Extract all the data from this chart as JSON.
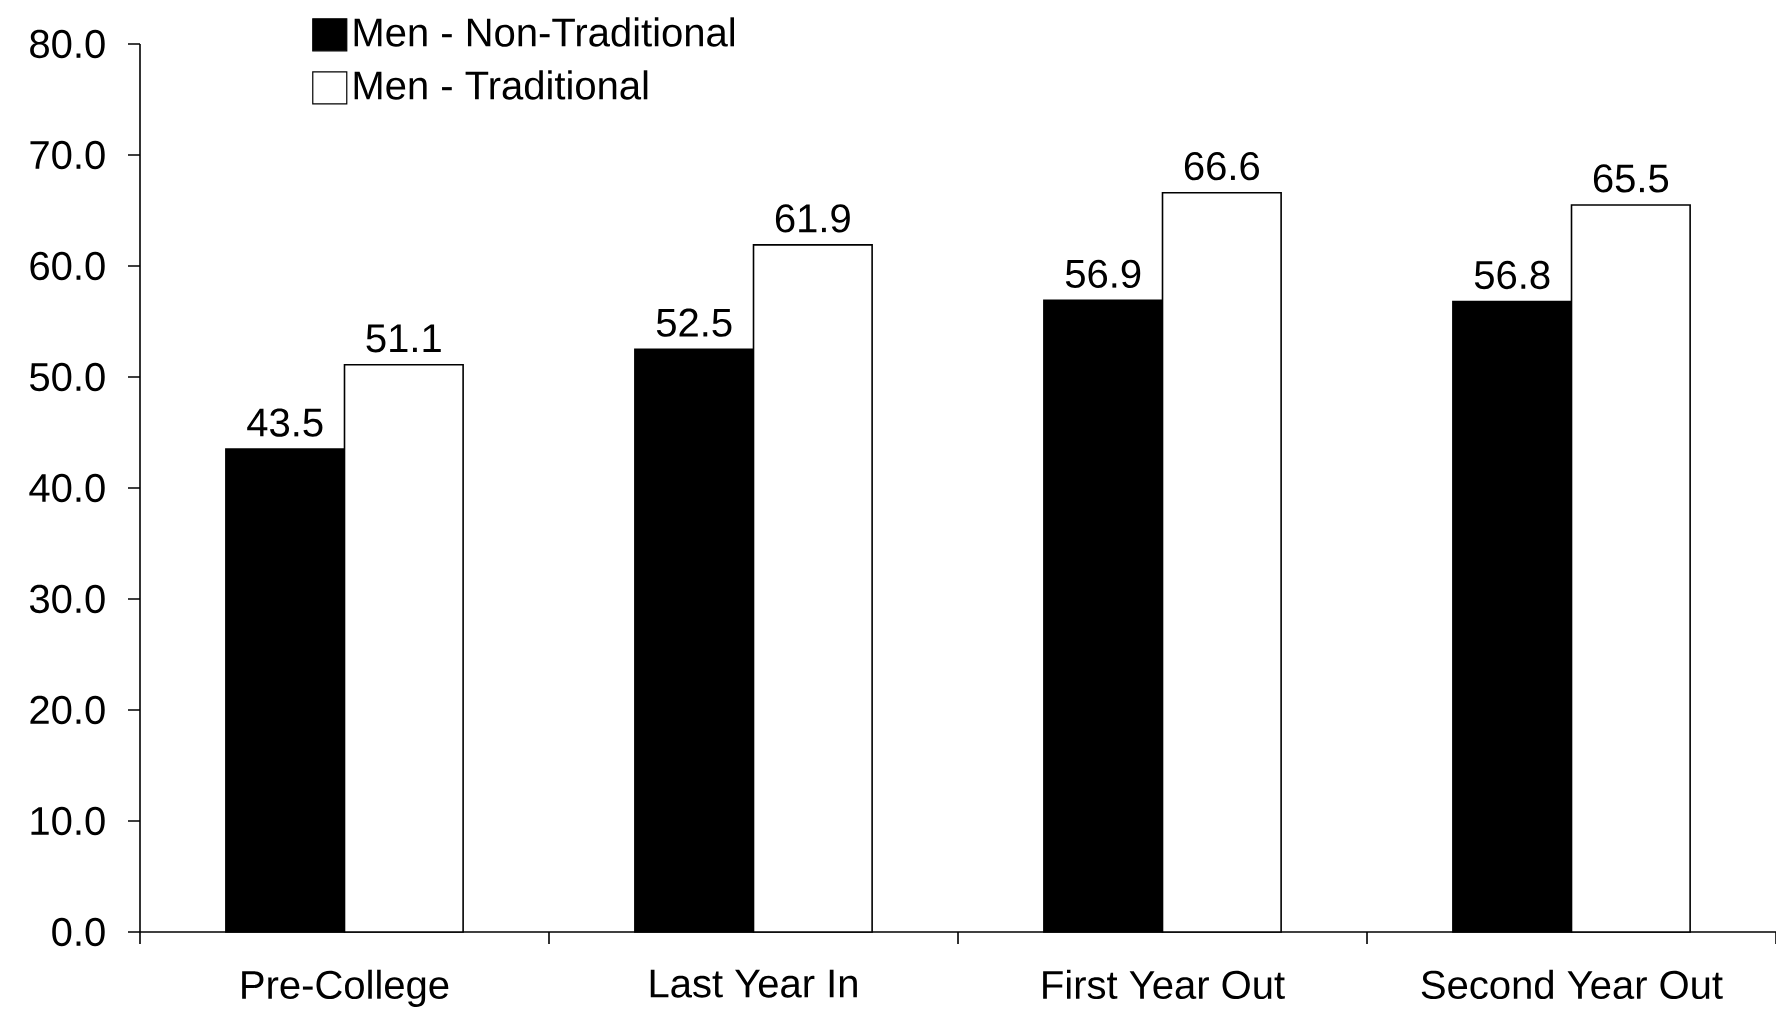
{
  "chart_data": {
    "type": "bar",
    "categories": [
      "Pre-College",
      "Last Year In",
      "First Year Out",
      "Second Year Out"
    ],
    "series": [
      {
        "name": "Men - Non-Traditional",
        "color": "#000000",
        "values": [
          43.5,
          52.5,
          56.9,
          56.8
        ]
      },
      {
        "name": "Men - Traditional",
        "color": "#ffffff",
        "values": [
          51.1,
          61.9,
          66.6,
          65.5
        ]
      }
    ],
    "ylim": [
      0,
      80
    ],
    "yticks": [
      {
        "value": 0,
        "label": "0.0"
      },
      {
        "value": 10,
        "label": "10.0"
      },
      {
        "value": 20,
        "label": "20.0"
      },
      {
        "value": 30,
        "label": "30.0"
      },
      {
        "value": 40,
        "label": "40.0"
      },
      {
        "value": 50,
        "label": "50.0"
      },
      {
        "value": 60,
        "label": "60.0"
      },
      {
        "value": 70,
        "label": "70.0"
      },
      {
        "value": 80,
        "label": "80.0"
      }
    ],
    "data_labels": true,
    "legend": "top left"
  }
}
